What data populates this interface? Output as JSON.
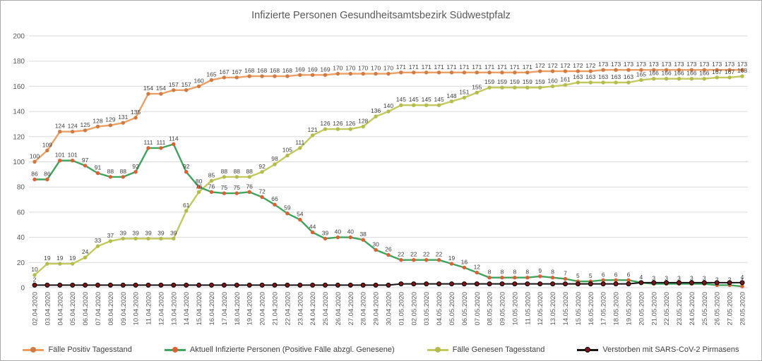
{
  "title": "Infizierte Personen Gesundheitsamtsbezirk Südwestpfalz",
  "colors": {
    "grid": "#dadada",
    "axis_text": "#595959",
    "data_label": "#3f3f3f",
    "title_text": "#595959",
    "frame_border": "#a9a9a9"
  },
  "chart_data": {
    "type": "line",
    "title": "Infizierte Personen Gesundheitsamtsbezirk Südwestpfalz",
    "xlabel": "",
    "ylabel": "",
    "ylim": [
      0,
      200
    ],
    "yticks": [
      0,
      20,
      40,
      60,
      80,
      100,
      120,
      140,
      160,
      180,
      200
    ],
    "grid": true,
    "legend_position": "bottom",
    "x": [
      "02.04.2020",
      "03.04.2020",
      "04.04.2020",
      "05.04.2020",
      "06.04.2020",
      "07.04.2020",
      "08.04.2020",
      "09.04.2020",
      "10.04.2020",
      "11.04.2020",
      "12.04.2020",
      "13.04.2020",
      "14.04.2020",
      "15.04.2020",
      "16.04.2020",
      "17.04.2020",
      "18.04.2020",
      "19.04.2020",
      "20.04.2020",
      "21.04.2020",
      "22.04.2020",
      "23.04.2020",
      "24.04.2020",
      "25.04.2020",
      "26.04.2020",
      "27.04.2020",
      "28.04.2020",
      "29.04.2020",
      "30.04.2020",
      "01.05.2020",
      "02.05.2020",
      "03.05.2020",
      "04.05.2020",
      "05.05.2020",
      "06.05.2020",
      "07.05.2020",
      "08.05.2020",
      "09.05.2020",
      "10.05.2020",
      "11.05.2020",
      "12.05.2020",
      "13.05.2020",
      "14.05.2020",
      "15.05.2020",
      "16.05.2020",
      "17.05.2020",
      "18.05.2020",
      "19.05.2020",
      "20.05.2020",
      "21.05.2020",
      "22.05.2020",
      "23.05.2020",
      "24.05.2020",
      "25.05.2020",
      "26.05.2020",
      "27.05.2020",
      "28.05.2020"
    ],
    "series": [
      {
        "name": "Fälle Positiv Tagesstand",
        "color": "#ed9f63",
        "marker": "#d07b45",
        "point_labels": "all",
        "values": [
          100,
          109,
          124,
          124,
          125,
          128,
          129,
          131,
          135,
          154,
          154,
          157,
          157,
          160,
          165,
          167,
          167,
          168,
          168,
          168,
          168,
          169,
          169,
          169,
          170,
          170,
          170,
          170,
          170,
          171,
          171,
          171,
          171,
          171,
          171,
          171,
          171,
          171,
          171,
          171,
          172,
          172,
          172,
          172,
          172,
          173,
          173,
          173,
          173,
          173,
          173,
          173,
          173,
          173,
          173,
          173,
          173
        ]
      },
      {
        "name": "Aktuell Infizierte Personen (Positive Fälle abzgl. Genesene)",
        "color": "#3fa45b",
        "marker": "#dd5f33",
        "point_labels": "all",
        "values": [
          86,
          86,
          101,
          101,
          97,
          91,
          88,
          88,
          92,
          111,
          111,
          114,
          92,
          80,
          76,
          75,
          75,
          76,
          72,
          66,
          59,
          54,
          44,
          39,
          40,
          40,
          38,
          30,
          26,
          22,
          22,
          22,
          22,
          19,
          16,
          12,
          8,
          8,
          8,
          8,
          9,
          8,
          7,
          5,
          5,
          6,
          6,
          6,
          4,
          3,
          3,
          3,
          3,
          3,
          2,
          2,
          1
        ]
      },
      {
        "name": "Fälle Genesen Tagesstand",
        "color": "#c2c95e",
        "marker": "#b5bc4f",
        "point_labels": "all",
        "values": [
          10,
          19,
          19,
          19,
          24,
          33,
          37,
          39,
          39,
          39,
          39,
          39,
          61,
          76,
          85,
          88,
          88,
          88,
          92,
          98,
          105,
          111,
          121,
          126,
          126,
          126,
          128,
          136,
          140,
          145,
          145,
          145,
          145,
          148,
          151,
          155,
          159,
          159,
          159,
          159,
          159,
          160,
          161,
          163,
          163,
          163,
          163,
          163,
          165,
          166,
          166,
          166,
          166,
          166,
          167,
          167,
          168
        ]
      },
      {
        "name": "Verstorben mit SARS-CoV-2 Pirmasens",
        "color": "#151515",
        "marker": "#7e1416",
        "marker_stroke": "#000000",
        "point_labels": "ends",
        "values": [
          2,
          2,
          2,
          2,
          2,
          2,
          2,
          2,
          2,
          2,
          2,
          2,
          2,
          2,
          2,
          2,
          2,
          2,
          2,
          2,
          2,
          2,
          2,
          2,
          2,
          2,
          2,
          2,
          2,
          3,
          3,
          3,
          3,
          3,
          3,
          3,
          3,
          3,
          3,
          3,
          3,
          3,
          3,
          3,
          3,
          3,
          3,
          3,
          4,
          4,
          4,
          4,
          4,
          4,
          4,
          4,
          4
        ]
      }
    ]
  }
}
